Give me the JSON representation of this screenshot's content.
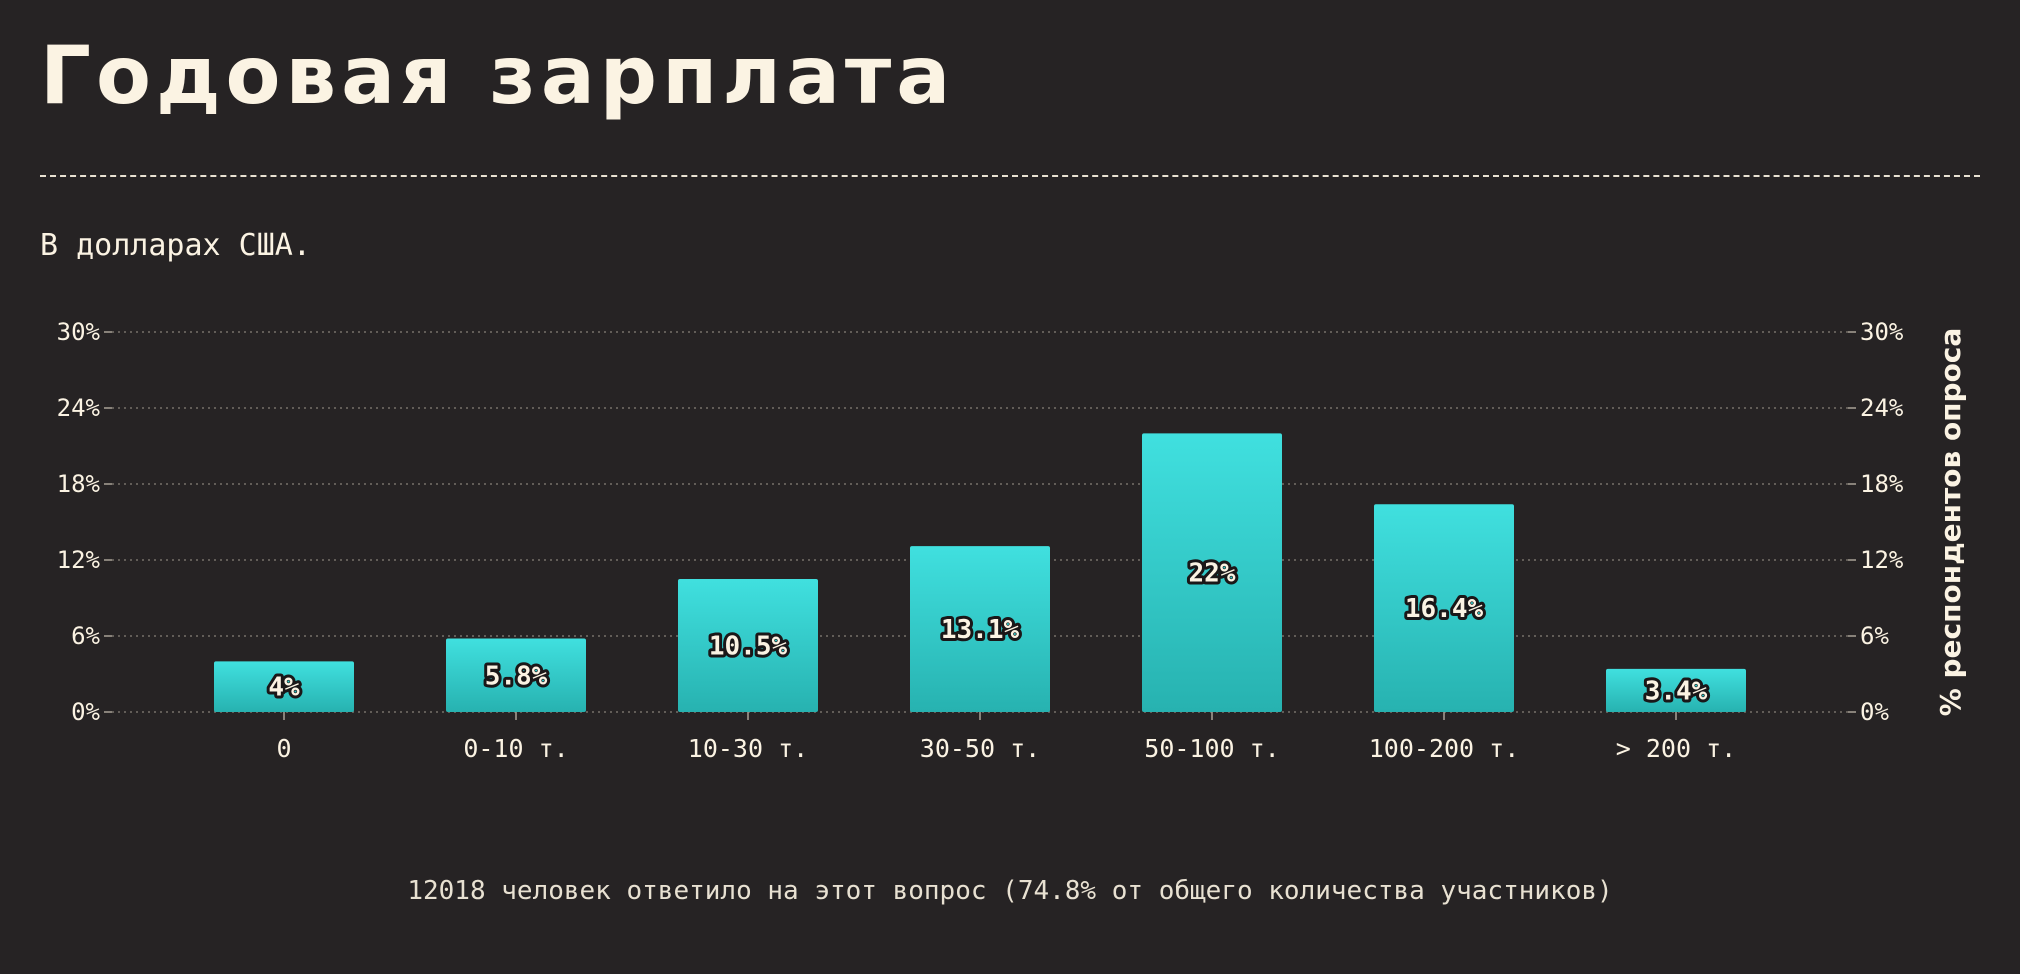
{
  "title": "Годовая зарплата",
  "subtitle": "В долларах США.",
  "footnote": "12018 человек ответило на этот вопрос (74.8% от общего количества участников)",
  "colors": {
    "background": "#262324",
    "bar_top": "#40e0df",
    "bar_bottom": "#27b2b0",
    "text": "#fbf3e3",
    "grid": "#77716a"
  },
  "chart_data": {
    "type": "bar",
    "categories": [
      "0",
      "0-10 т.",
      "10-30 т.",
      "30-50 т.",
      "50-100 т.",
      "100-200 т.",
      "> 200 т."
    ],
    "values": [
      4,
      5.8,
      10.5,
      13.1,
      22,
      16.4,
      3.4
    ],
    "data_labels": [
      "4%",
      "5.8%",
      "10.5%",
      "13.1%",
      "22%",
      "16.4%",
      "3.4%"
    ],
    "ylim": [
      0,
      30
    ],
    "y_ticks": [
      0,
      6,
      12,
      18,
      24,
      30
    ],
    "y_tick_labels": [
      "0%",
      "6%",
      "12%",
      "18%",
      "24%",
      "30%"
    ],
    "ylabel": "% респондентов опроса",
    "xlabel": "",
    "grid": true
  }
}
